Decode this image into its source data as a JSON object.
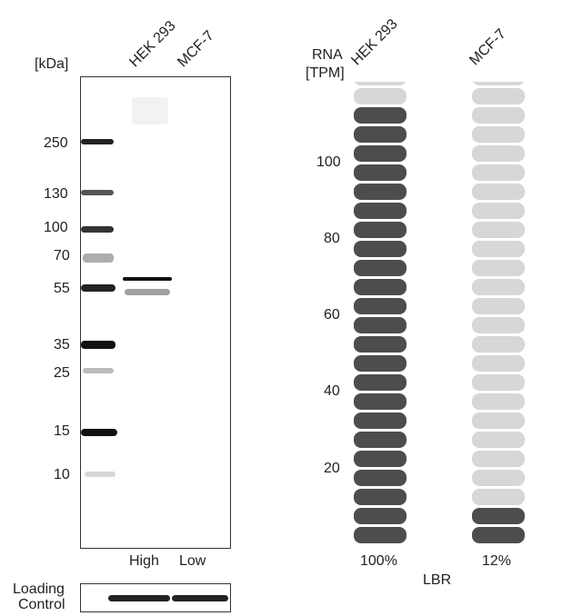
{
  "western_blot": {
    "unit_label": "[kDa]",
    "lane_labels": [
      "HEK 293",
      "MCF-7"
    ],
    "markers": [
      "250",
      "130",
      "100",
      "70",
      "55",
      "35",
      "25",
      "15",
      "10"
    ],
    "expression_labels": [
      "High",
      "Low"
    ],
    "loading_control_label": [
      "Loading",
      "Control"
    ]
  },
  "chart_data": {
    "type": "bar",
    "subtype": "tile-stack",
    "ylabel": [
      "RNA",
      "[TPM]"
    ],
    "xlabel": "LBR",
    "categories": [
      "HEK 293",
      "MCF-7"
    ],
    "y_ticks": [
      "100",
      "80",
      "60",
      "40",
      "20"
    ],
    "tiles_total": 25,
    "filled_tiles": [
      23,
      2
    ],
    "percent_labels": [
      "100%",
      "12%"
    ],
    "colors": {
      "filled": "#4d4d4d",
      "empty": "#d7d7d7"
    }
  }
}
